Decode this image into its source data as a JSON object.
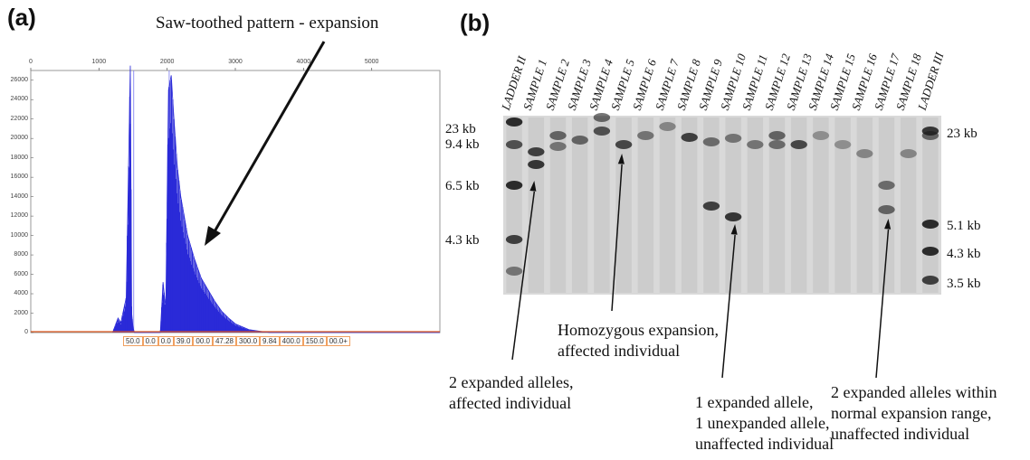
{
  "panel_a": {
    "letter": "(a)",
    "annotation": "Saw-toothed pattern - expansion",
    "x_ticks": [
      "0",
      "1000",
      "2000",
      "3000",
      "4000",
      "5000"
    ],
    "x_tick_values": [
      0,
      1000,
      2000,
      3000,
      4000,
      5000
    ],
    "y_ticks": [
      "26000",
      "24000",
      "22000",
      "20000",
      "18000",
      "16000",
      "14000",
      "12000",
      "10000",
      "8000",
      "6000",
      "4000",
      "2000",
      "0"
    ],
    "peak_labels": [
      "50.0",
      "0.0",
      "0.0",
      "39.0",
      "00.0",
      "47.28",
      "300.0",
      "9.84",
      "400.0",
      "150.0",
      "00.0+"
    ],
    "colors": {
      "trace": "#2a2ad8",
      "baseline": "#e05a20",
      "frame": "#999999"
    }
  },
  "chart_data": {
    "type": "line",
    "x_range": [
      0,
      6000
    ],
    "ylim": [
      0,
      27000
    ],
    "grid": false,
    "series": [
      {
        "x": [
          1200,
          1280,
          1320,
          1400,
          1460,
          1480,
          1500,
          1520,
          1600,
          1900,
          1940,
          1980,
          2020,
          2060,
          2100,
          2150,
          2200,
          2300,
          2400,
          2500,
          2600,
          2700,
          2800,
          2900,
          3000,
          3200,
          3500,
          6000
        ],
        "y": [
          0,
          1500,
          1000,
          3600,
          27500,
          2000,
          500,
          0,
          0,
          0,
          5200,
          2500,
          25000,
          26500,
          22000,
          17000,
          14000,
          10000,
          7600,
          5600,
          4400,
          3200,
          2200,
          1500,
          900,
          300,
          0,
          0
        ]
      }
    ]
  },
  "panel_b": {
    "letter": "(b)",
    "lanes": [
      "LADDER II",
      "SAMPLE 1",
      "SAMPLE 2",
      "SAMPLE 3",
      "SAMPLE 4",
      "SAMPLE 5",
      "SAMPLE 6",
      "SAMPLE 7",
      "SAMPLE 8",
      "SAMPLE 9",
      "SAMPLE 10",
      "SAMPLE 11",
      "SAMPLE 12",
      "SAMPLE 13",
      "SAMPLE 14",
      "SAMPLE 15",
      "SAMPLE 16",
      "SAMPLE 17",
      "SAMPLE 18",
      "LADDER III"
    ],
    "left_kb": [
      "23 kb",
      "9.4 kb",
      "6.5 kb",
      "4.3 kb"
    ],
    "right_kb": [
      "23 kb",
      "5.1 kb",
      "4.3 kb",
      "3.5 kb"
    ],
    "annotations": {
      "a1": [
        "2 expanded alleles,",
        "affected individual"
      ],
      "a2": [
        "Homozygous expansion,",
        "affected individual"
      ],
      "a3": [
        "1 expanded allele,",
        "1 unexpanded allele,",
        "unaffected individual"
      ],
      "a4": [
        "2 expanded alleles within",
        "normal expansion range,",
        "unaffected individual"
      ]
    }
  }
}
